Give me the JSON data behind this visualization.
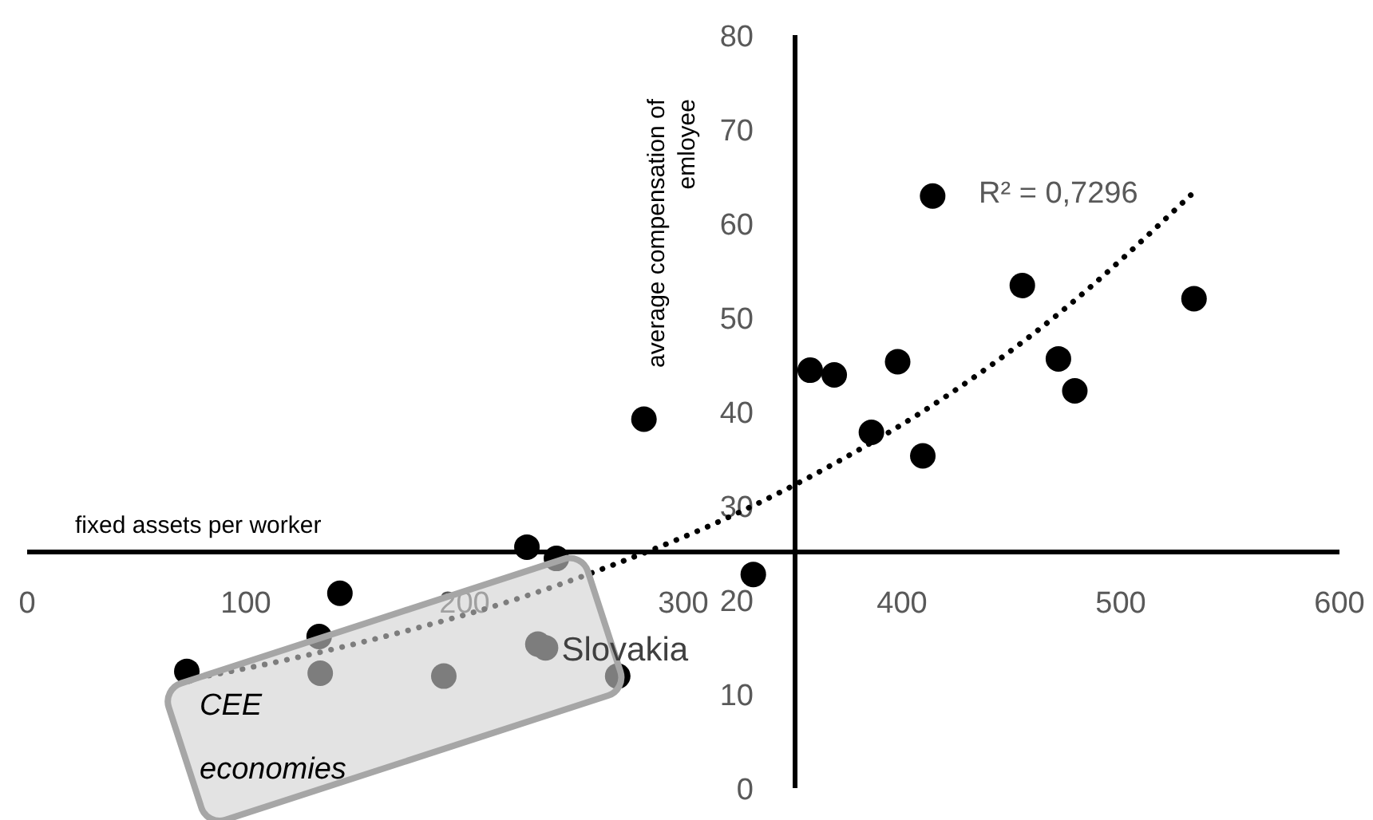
{
  "chart_data": {
    "type": "scatter",
    "xlabel": "fixed assets per worker",
    "ylabel": "average compensation of emloyee",
    "xlim": [
      0,
      600
    ],
    "ylim": [
      0,
      80
    ],
    "xticks": [
      0,
      100,
      200,
      300,
      400,
      500,
      600
    ],
    "yticks": [
      0,
      10,
      20,
      30,
      40,
      50,
      60,
      70,
      80
    ],
    "grid": false,
    "marker": "circle",
    "series": [
      {
        "type": "scatter",
        "color": "#000000",
        "x": [
          414,
          358,
          369,
          398,
          386,
          409.5,
          455,
          471.5,
          479,
          533.5,
          332,
          282,
          228.5,
          242,
          143,
          133.5,
          134,
          73,
          190.5,
          233.5,
          237,
          270
        ],
        "values": [
          62.9,
          44.4,
          43.9,
          45.3,
          37.8,
          35.3,
          53.4,
          45.6,
          42.2,
          52,
          22.7,
          39.2,
          25.6,
          24.4,
          20.7,
          16.1,
          12.2,
          12.4,
          11.9,
          15.3,
          14.9,
          11.9
        ]
      },
      {
        "type": "line",
        "color": "#000000",
        "line_style": "dotted",
        "marker": "none",
        "x": [
          73,
          120,
          170,
          220,
          270,
          320,
          370,
          420,
          470,
          532
        ],
        "values": [
          11.5,
          13.7,
          16.5,
          19.8,
          23.9,
          28.7,
          34.6,
          41.6,
          50.1,
          63.0
        ]
      }
    ],
    "annotations": [
      "R² = 0,7296",
      {
        "text": "Slovakia",
        "x": 237,
        "y": 14.9
      },
      "CEE economies"
    ]
  }
}
